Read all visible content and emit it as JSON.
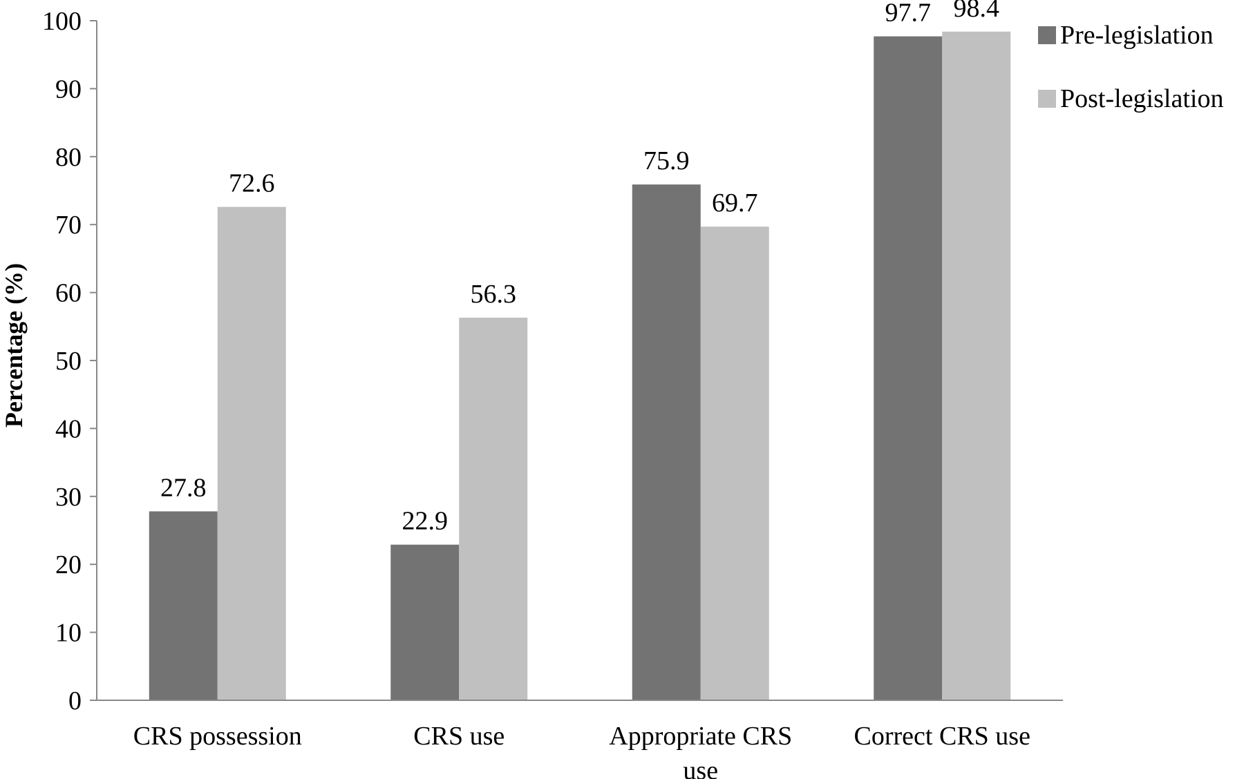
{
  "chart_data": {
    "type": "bar",
    "title": "",
    "xlabel": "",
    "ylabel": "Percentage (%)",
    "ylim": [
      0,
      100
    ],
    "yticks": [
      0,
      10,
      20,
      30,
      40,
      50,
      60,
      70,
      80,
      90,
      100
    ],
    "grid": false,
    "legend_position": "top-right",
    "categories": [
      [
        "CRS possession"
      ],
      [
        "CRS use"
      ],
      [
        "Appropriate CRS",
        "use"
      ],
      [
        "Correct CRS use"
      ]
    ],
    "series": [
      {
        "name": "Pre-legislation",
        "color": "#737373",
        "values": [
          27.8,
          22.9,
          75.9,
          97.7
        ]
      },
      {
        "name": "Post-legislation",
        "color": "#c0c0c0",
        "values": [
          72.6,
          56.3,
          69.7,
          98.4
        ]
      }
    ]
  }
}
